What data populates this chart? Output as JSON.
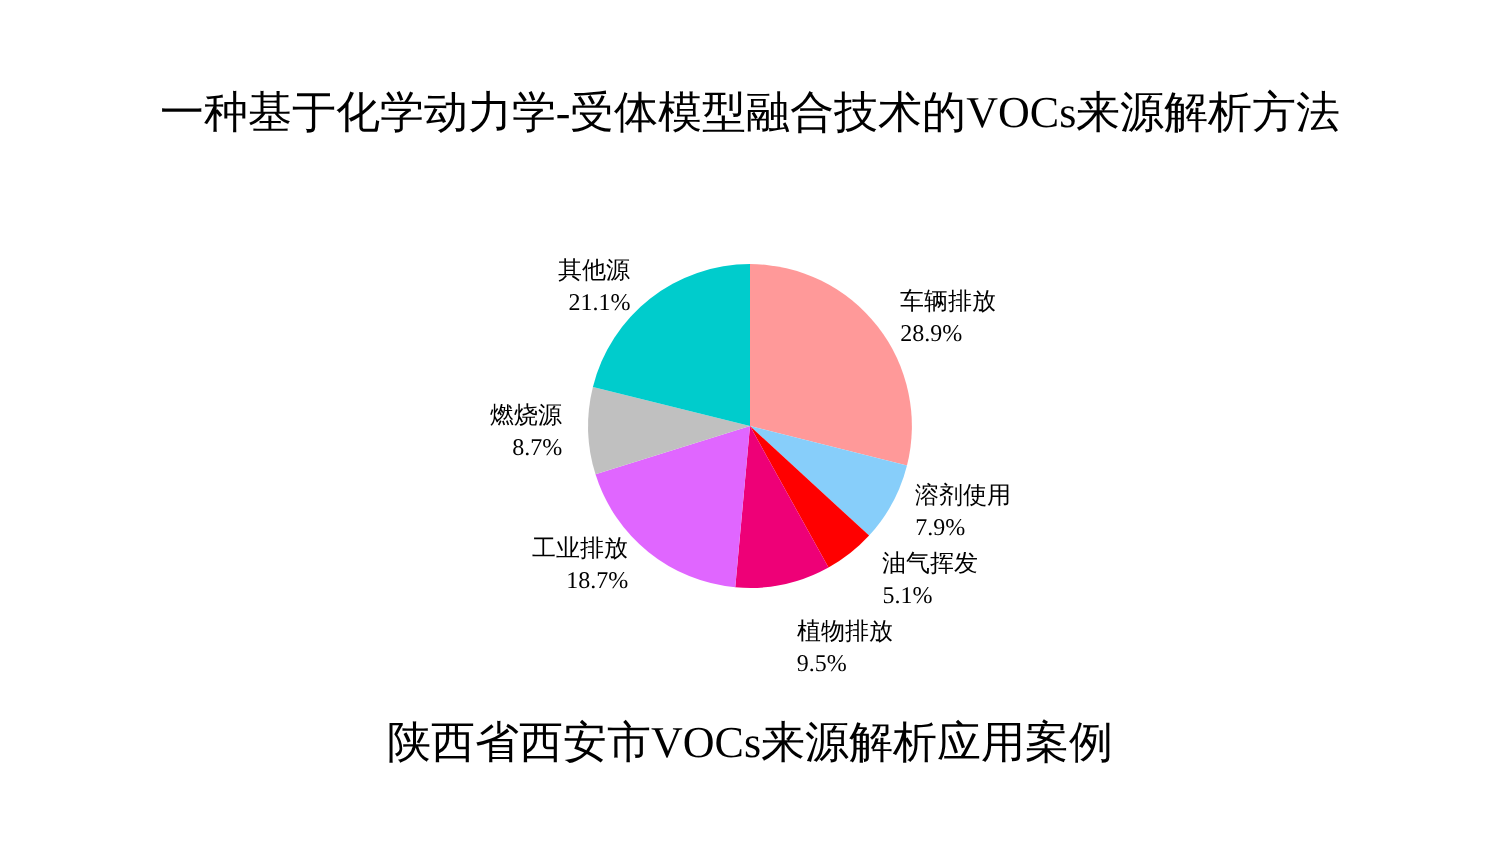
{
  "chart_data": {
    "type": "pie",
    "title": "一种基于化学动力学-受体模型融合技术的VOCs来源解析方法",
    "subtitle": "陕西省西安市VOCs来源解析应用案例",
    "categories": [
      "车辆排放",
      "溶剂使用",
      "油气挥发",
      "植物排放",
      "工业排放",
      "燃烧源",
      "其他源"
    ],
    "values": [
      28.9,
      7.9,
      5.1,
      9.5,
      18.7,
      8.7,
      21.1
    ],
    "value_labels": [
      "28.9%",
      "7.9%",
      "5.1%",
      "9.5%",
      "18.7%",
      "8.7%",
      "21.1%"
    ],
    "colors": [
      "#ff9999",
      "#87cefa",
      "#ff0000",
      "#ee0077",
      "#e066ff",
      "#c0c0c0",
      "#00cccc"
    ],
    "legend": false
  }
}
